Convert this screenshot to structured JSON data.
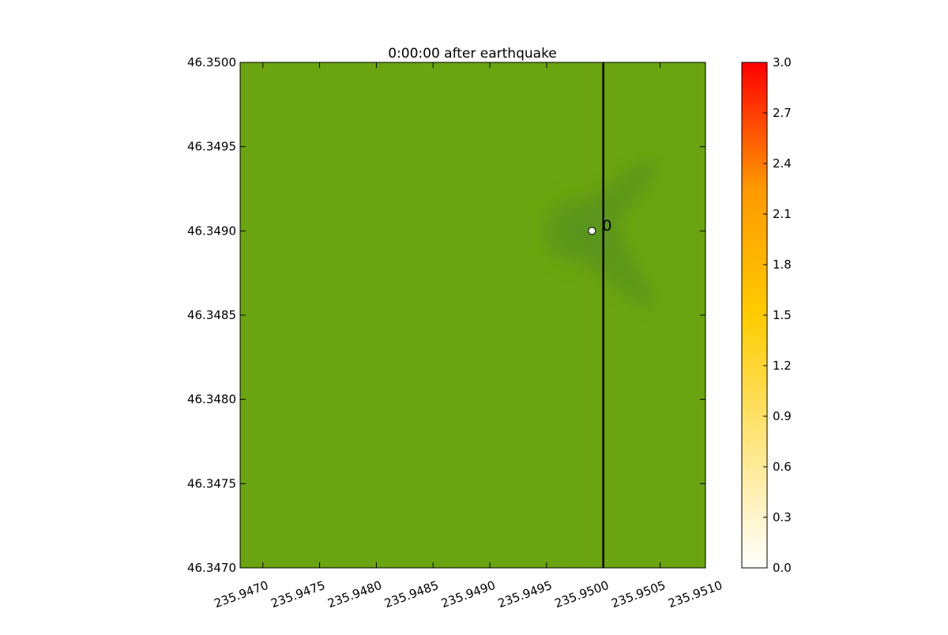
{
  "chart_data": [
    {
      "type": "heatmap",
      "title": "0:00:00 after earthquake",
      "xlabel": "",
      "ylabel": "",
      "xlim": [
        235.9468,
        235.9509
      ],
      "ylim": [
        46.347,
        46.35
      ],
      "x_ticks": [
        "235.9470",
        "235.9475",
        "235.9480",
        "235.9485",
        "235.9490",
        "235.9495",
        "235.9500",
        "235.9505",
        "235.9510"
      ],
      "x_tick_values": [
        235.947,
        235.9475,
        235.948,
        235.9485,
        235.949,
        235.9495,
        235.95,
        235.9505,
        235.951
      ],
      "y_ticks": [
        "46.3470",
        "46.3475",
        "46.3480",
        "46.3485",
        "46.3490",
        "46.3495",
        "46.3500"
      ],
      "y_tick_values": [
        46.347,
        46.3475,
        46.348,
        46.3485,
        46.349,
        46.3495,
        46.35
      ],
      "vertical_line": {
        "x": 235.95
      },
      "gauge": {
        "x": 235.9499,
        "y": 46.349,
        "label": "0"
      },
      "field_colors": {
        "base": "#6aa410",
        "dark": "#5b951b"
      },
      "grid": false
    },
    {
      "type": "colorbar",
      "range": [
        0.0,
        3.0
      ],
      "ticks": [
        "0.0",
        "0.3",
        "0.6",
        "0.9",
        "1.2",
        "1.5",
        "1.8",
        "2.1",
        "2.4",
        "2.7",
        "3.0"
      ],
      "tick_values": [
        0.0,
        0.3,
        0.6,
        0.9,
        1.2,
        1.5,
        1.8,
        2.1,
        2.4,
        2.7,
        3.0
      ],
      "colors": [
        "#ffffff",
        "#ffcc00",
        "#ff9900",
        "#ff0000"
      ]
    }
  ]
}
